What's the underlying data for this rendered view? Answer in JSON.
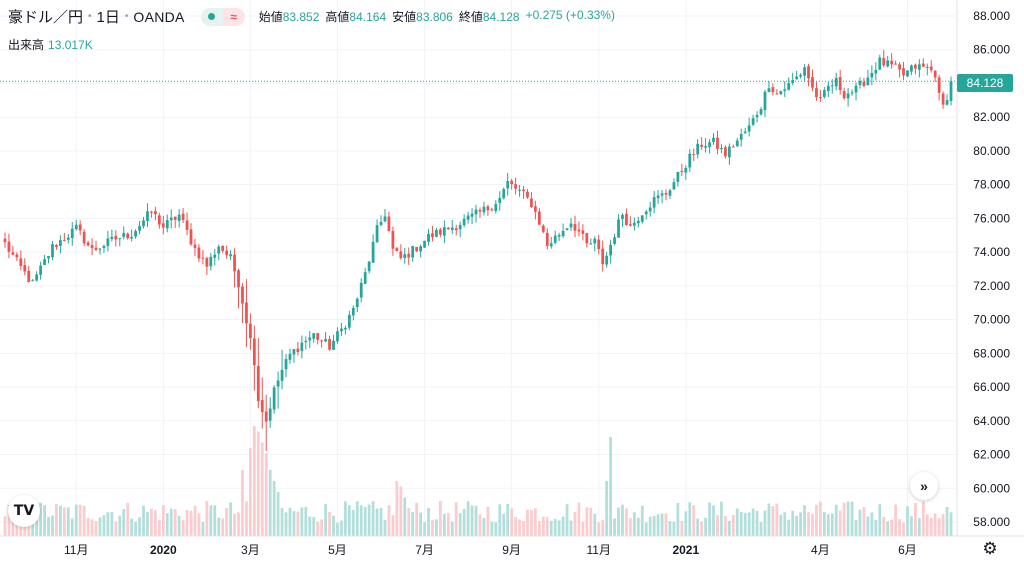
{
  "legend": {
    "symbol": "豪ドル／円",
    "interval": "1日",
    "source": "OANDA",
    "open_label": "始値",
    "open": "83.852",
    "high_label": "高値",
    "high": "84.164",
    "low_label": "安値",
    "low": "83.806",
    "close_label": "終値",
    "close": "84.128",
    "change": "+0.275 (+0.33%)",
    "approx_icon": "≈"
  },
  "volume": {
    "label": "出来高",
    "value": "13.017K"
  },
  "icons": {
    "logo": "tradingview-logo-icon",
    "scroll": "double-chevron-right-icon",
    "settings": "gear-icon"
  },
  "logo_text": "TV",
  "scroll_glyph": "»",
  "settings_glyph": "⚙",
  "colors": {
    "up": "#26a69a",
    "down": "#ef5350",
    "up_volume": "#b2dfdb",
    "down_volume": "#fccbcd",
    "grid": "#f0f3fa"
  },
  "chart_data": {
    "type": "candlestick",
    "title": "豪ドル／円 · 1日 · OANDA",
    "current_price": "84.128",
    "y_ticks": [
      "88.000",
      "86.000",
      "84.000",
      "82.000",
      "80.000",
      "78.000",
      "76.000",
      "74.000",
      "72.000",
      "70.000",
      "68.000",
      "66.000",
      "64.000",
      "62.000",
      "60.000",
      "58.000"
    ],
    "ylim": [
      57.5,
      88.6
    ],
    "x_ticks": [
      {
        "label": "11月",
        "idx": 18
      },
      {
        "label": "2020",
        "idx": 40
      },
      {
        "label": "3月",
        "idx": 62
      },
      {
        "label": "5月",
        "idx": 84
      },
      {
        "label": "7月",
        "idx": 106
      },
      {
        "label": "9月",
        "idx": 128
      },
      {
        "label": "11月",
        "idx": 150
      },
      {
        "label": "2021",
        "idx": 172
      },
      {
        "label": "4月",
        "idx": 206
      },
      {
        "label": "6月",
        "idx": 228
      }
    ],
    "bar_count": 240,
    "anchors": [
      [
        0,
        74.5
      ],
      [
        3,
        73.4
      ],
      [
        7,
        72.1
      ],
      [
        9,
        73.0
      ],
      [
        12,
        74.3
      ],
      [
        18,
        75.4
      ],
      [
        22,
        74.1
      ],
      [
        28,
        74.8
      ],
      [
        32,
        75.1
      ],
      [
        37,
        76.4
      ],
      [
        40,
        75.5
      ],
      [
        44,
        76.2
      ],
      [
        48,
        74.2
      ],
      [
        51,
        73.2
      ],
      [
        54,
        74.4
      ],
      [
        57,
        73.6
      ],
      [
        59,
        72.2
      ],
      [
        61,
        70.0
      ],
      [
        63,
        67.6
      ],
      [
        64,
        65.3
      ],
      [
        66,
        64.0
      ],
      [
        68,
        65.8
      ],
      [
        70,
        67.0
      ],
      [
        72,
        67.9
      ],
      [
        75,
        68.6
      ],
      [
        78,
        69.1
      ],
      [
        82,
        68.4
      ],
      [
        85,
        69.4
      ],
      [
        88,
        70.6
      ],
      [
        91,
        72.7
      ],
      [
        94,
        75.3
      ],
      [
        96,
        76.3
      ],
      [
        98,
        74.1
      ],
      [
        100,
        73.6
      ],
      [
        103,
        74.1
      ],
      [
        107,
        74.9
      ],
      [
        110,
        75.2
      ],
      [
        114,
        75.6
      ],
      [
        118,
        76.1
      ],
      [
        122,
        76.6
      ],
      [
        125,
        77.2
      ],
      [
        127,
        78.1
      ],
      [
        130,
        77.6
      ],
      [
        133,
        76.9
      ],
      [
        135,
        75.8
      ],
      [
        137,
        74.4
      ],
      [
        140,
        75.1
      ],
      [
        143,
        75.8
      ],
      [
        145,
        75.2
      ],
      [
        147,
        74.4
      ],
      [
        149,
        74.6
      ],
      [
        151,
        73.4
      ],
      [
        152,
        73.8
      ],
      [
        154,
        75.1
      ],
      [
        156,
        76.3
      ],
      [
        158,
        75.5
      ],
      [
        161,
        76.4
      ],
      [
        164,
        77.1
      ],
      [
        167,
        77.5
      ],
      [
        170,
        78.5
      ],
      [
        173,
        79.6
      ],
      [
        176,
        80.4
      ],
      [
        179,
        80.5
      ],
      [
        182,
        79.8
      ],
      [
        185,
        80.6
      ],
      [
        188,
        81.4
      ],
      [
        191,
        82.7
      ],
      [
        193,
        84.0
      ],
      [
        195,
        83.4
      ],
      [
        198,
        83.9
      ],
      [
        201,
        84.6
      ],
      [
        202,
        85.0
      ],
      [
        204,
        83.7
      ],
      [
        206,
        82.9
      ],
      [
        208,
        83.8
      ],
      [
        210,
        84.1
      ],
      [
        212,
        83.4
      ],
      [
        215,
        83.6
      ],
      [
        218,
        84.4
      ],
      [
        221,
        85.3
      ],
      [
        224,
        85.0
      ],
      [
        227,
        84.5
      ],
      [
        230,
        85.0
      ],
      [
        233,
        84.9
      ],
      [
        235,
        84.6
      ],
      [
        236,
        83.2
      ],
      [
        237,
        82.6
      ],
      [
        238,
        83.3
      ],
      [
        239,
        84.13
      ]
    ],
    "volume_spikes": [
      [
        60,
        0.6
      ],
      [
        62,
        0.8
      ],
      [
        63,
        1.0
      ],
      [
        64,
        0.95
      ],
      [
        65,
        0.85
      ],
      [
        66,
        0.75
      ],
      [
        67,
        0.6
      ],
      [
        68,
        0.5
      ],
      [
        69,
        0.4
      ],
      [
        99,
        0.5
      ],
      [
        100,
        0.45
      ],
      [
        101,
        0.35
      ],
      [
        152,
        0.5
      ],
      [
        153,
        0.9
      ]
    ]
  }
}
